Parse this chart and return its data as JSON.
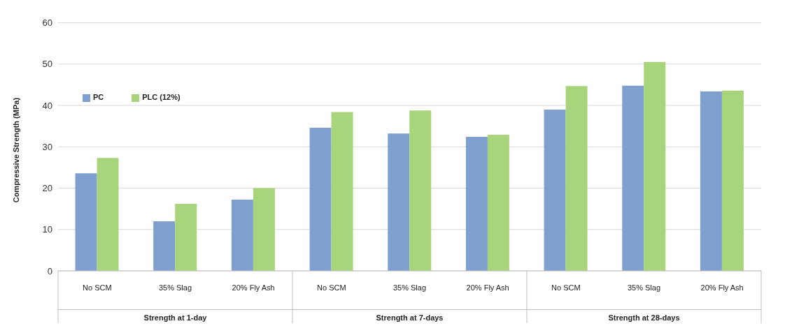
{
  "chart_data": {
    "type": "bar",
    "ylabel": "Compressive Strength (MPa)",
    "categories": [
      "No SCM",
      "35% Slag",
      "20% Fly Ash",
      "No SCM",
      "35% Slag",
      "20% Fly Ash",
      "No SCM",
      "35% Slag",
      "20% Fly Ash"
    ],
    "series": [
      {
        "name": "PC",
        "color": "#7f9fcf",
        "values": [
          23.6,
          12.0,
          17.2,
          34.6,
          33.2,
          32.4,
          39.0,
          44.8,
          43.4
        ]
      },
      {
        "name": "PLC (12%)",
        "color": "#a8d57c",
        "values": [
          27.3,
          16.2,
          20.0,
          38.4,
          38.8,
          32.9,
          44.7,
          50.5,
          43.6
        ]
      }
    ],
    "annotations": [
      "Strength at 1-day",
      "Strength at 7-days",
      "Strength at 28-days"
    ],
    "ylim": [
      0,
      60
    ],
    "yticks": [
      0,
      10,
      20,
      30,
      40,
      50,
      60
    ],
    "grid": "y",
    "legend": "top left"
  }
}
